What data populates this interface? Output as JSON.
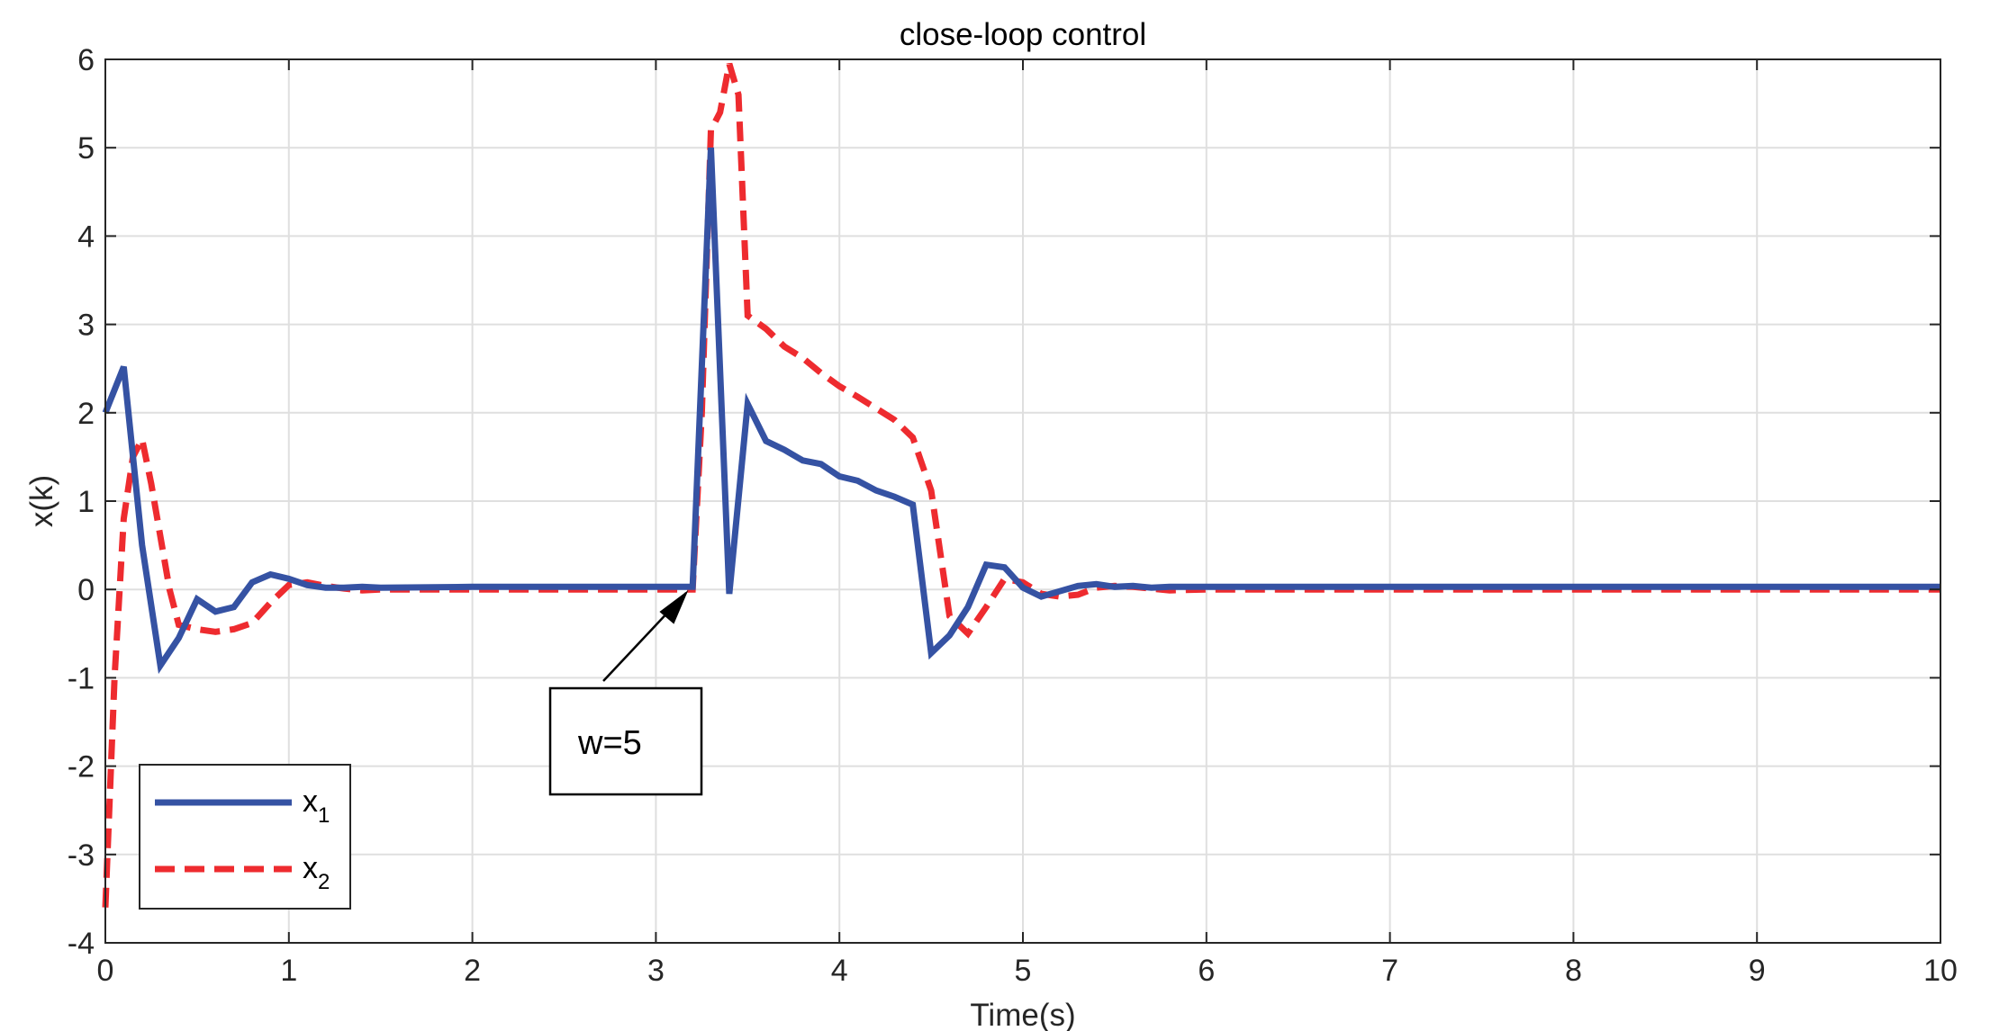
{
  "chart_data": {
    "type": "line",
    "title": "close-loop control",
    "xlabel": "Time(s)",
    "ylabel": "x(k)",
    "xlim": [
      0,
      10
    ],
    "ylim": [
      -4,
      6
    ],
    "x_ticks": [
      "0",
      "1",
      "2",
      "3",
      "4",
      "5",
      "6",
      "7",
      "8",
      "9",
      "10"
    ],
    "y_ticks": [
      "-4",
      "-3",
      "-2",
      "-1",
      "0",
      "1",
      "2",
      "3",
      "4",
      "5",
      "6"
    ],
    "grid": true,
    "legend_position": "bottom-left",
    "series": [
      {
        "name": "x",
        "subscript": "1",
        "color": "#3552A3",
        "style": "solid",
        "x": [
          0,
          0.1,
          0.2,
          0.3,
          0.4,
          0.5,
          0.6,
          0.7,
          0.8,
          0.9,
          1.0,
          1.1,
          1.2,
          1.3,
          1.4,
          1.5,
          2.0,
          2.5,
          3.0,
          3.1,
          3.2,
          3.3,
          3.4,
          3.5,
          3.6,
          3.7,
          3.8,
          3.9,
          4.0,
          4.1,
          4.2,
          4.3,
          4.4,
          4.5,
          4.6,
          4.7,
          4.8,
          4.9,
          5.0,
          5.1,
          5.2,
          5.3,
          5.4,
          5.5,
          5.6,
          5.7,
          5.8,
          6.0,
          7.0,
          8.0,
          9.0,
          10.0
        ],
        "y": [
          2.0,
          2.52,
          0.5,
          -0.86,
          -0.55,
          -0.11,
          -0.25,
          -0.2,
          0.08,
          0.17,
          0.12,
          0.05,
          0.02,
          0.02,
          0.03,
          0.02,
          0.03,
          0.03,
          0.03,
          0.03,
          0.03,
          5.0,
          -0.05,
          2.1,
          1.68,
          1.58,
          1.46,
          1.42,
          1.28,
          1.23,
          1.12,
          1.05,
          0.96,
          -0.72,
          -0.52,
          -0.2,
          0.28,
          0.25,
          0.02,
          -0.08,
          -0.02,
          0.04,
          0.06,
          0.03,
          0.04,
          0.02,
          0.03,
          0.03,
          0.03,
          0.03,
          0.03,
          0.03
        ]
      },
      {
        "name": "x",
        "subscript": "2",
        "color": "#EE2B2F",
        "style": "dashed",
        "x": [
          0,
          0.05,
          0.1,
          0.15,
          0.2,
          0.25,
          0.3,
          0.35,
          0.4,
          0.5,
          0.6,
          0.7,
          0.8,
          0.9,
          1.0,
          1.1,
          1.2,
          1.3,
          1.4,
          1.5,
          2.0,
          2.5,
          3.0,
          3.1,
          3.2,
          3.25,
          3.3,
          3.35,
          3.4,
          3.45,
          3.5,
          3.6,
          3.7,
          3.8,
          3.9,
          4.0,
          4.1,
          4.2,
          4.3,
          4.4,
          4.5,
          4.6,
          4.7,
          4.8,
          4.9,
          5.0,
          5.1,
          5.2,
          5.3,
          5.4,
          5.5,
          5.6,
          5.7,
          5.8,
          6.0,
          7.0,
          8.0,
          9.0,
          10.0
        ],
        "y": [
          -3.6,
          -1.0,
          0.8,
          1.5,
          1.7,
          1.2,
          0.6,
          0.0,
          -0.4,
          -0.45,
          -0.48,
          -0.45,
          -0.38,
          -0.15,
          0.05,
          0.08,
          0.04,
          0.01,
          -0.01,
          0.0,
          0.0,
          0.0,
          0.0,
          0.0,
          0.0,
          2.0,
          5.2,
          5.4,
          5.95,
          5.6,
          3.1,
          2.95,
          2.75,
          2.62,
          2.45,
          2.3,
          2.18,
          2.05,
          1.92,
          1.72,
          1.12,
          -0.3,
          -0.5,
          -0.2,
          0.12,
          0.08,
          -0.05,
          -0.08,
          -0.06,
          0.02,
          0.04,
          0.03,
          0.01,
          -0.01,
          0.0,
          0.0,
          0.0,
          0.0,
          0.0
        ]
      }
    ],
    "annotations": [
      {
        "text": "w=5",
        "arrow_to": {
          "x": 3.2,
          "y": 0.0
        }
      }
    ]
  }
}
